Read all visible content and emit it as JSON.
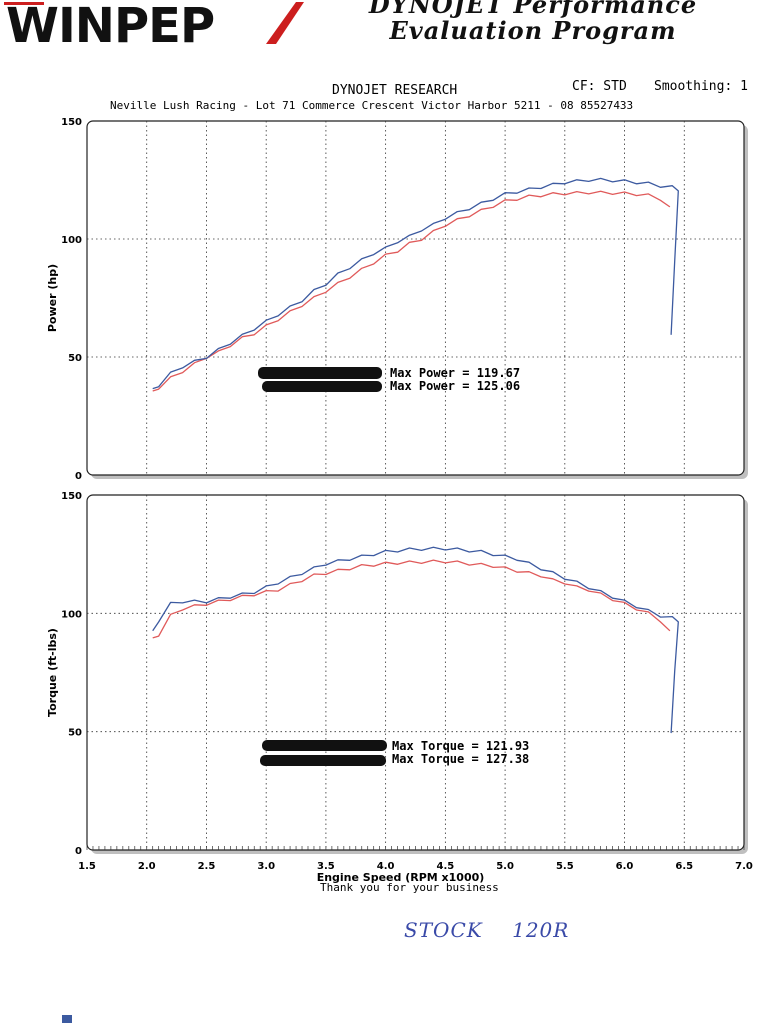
{
  "logo": {
    "name": "WINPEP",
    "title_line1": "DYNOJET Performance",
    "title_line2": "Evaluation Program"
  },
  "header": {
    "company": "DYNOJET RESEARCH",
    "cf": "CF: STD",
    "smoothing": "Smoothing: 1",
    "address": "Neville Lush Racing - Lot 71 Commerce Crescent Victor Harbor  5211 - 08 85527433"
  },
  "footer": {
    "thanks": "Thank you for your business",
    "handwritten": "STOCK    120R"
  },
  "colors": {
    "run_red": "#e05a5a",
    "run_blue": "#3c5aa0",
    "grid": "#333333"
  },
  "chart_data": [
    {
      "type": "line",
      "ylabel": "Power (hp)",
      "xlabel": "",
      "xlim": [
        1.5,
        7.0
      ],
      "ylim": [
        0,
        150
      ],
      "xticks": [
        "1.5",
        "2.0",
        "2.5",
        "3.0",
        "3.5",
        "4.0",
        "4.5",
        "5.0",
        "5.5",
        "6.0",
        "6.5",
        "7.0"
      ],
      "yticks": [
        "0",
        "50",
        "100",
        "150"
      ],
      "grid": true,
      "annotations": [
        "Max Power = 119.67",
        "Max Power = 125.06"
      ],
      "series": [
        {
          "color": "#e05a5a",
          "x": [
            2.05,
            2.1,
            2.2,
            2.3,
            2.4,
            2.5,
            2.6,
            2.7,
            2.8,
            2.9,
            3.0,
            3.1,
            3.2,
            3.3,
            3.4,
            3.5,
            3.6,
            3.7,
            3.8,
            3.9,
            4.0,
            4.1,
            4.2,
            4.3,
            4.4,
            4.5,
            4.6,
            4.7,
            4.8,
            4.9,
            5.0,
            5.1,
            5.2,
            5.3,
            5.4,
            5.5,
            5.6,
            5.7,
            5.8,
            5.9,
            6.0,
            6.1,
            6.2,
            6.3,
            6.38
          ],
          "y": [
            35,
            37,
            41,
            44,
            47,
            50,
            52,
            55,
            58,
            60,
            63,
            66,
            69,
            72,
            75,
            78,
            81,
            84,
            87,
            90,
            93,
            95,
            98,
            100,
            103,
            106,
            108,
            110,
            112,
            114,
            116,
            117,
            118,
            118.5,
            119,
            119.3,
            119.5,
            119.7,
            119.6,
            119.5,
            119.3,
            119,
            118.5,
            117,
            113
          ]
        },
        {
          "color": "#3c5aa0",
          "x": [
            2.05,
            2.1,
            2.2,
            2.3,
            2.4,
            2.5,
            2.6,
            2.7,
            2.8,
            2.9,
            3.0,
            3.1,
            3.2,
            3.3,
            3.4,
            3.5,
            3.6,
            3.7,
            3.8,
            3.9,
            4.0,
            4.1,
            4.2,
            4.3,
            4.4,
            4.5,
            4.6,
            4.7,
            4.8,
            4.9,
            5.0,
            5.1,
            5.2,
            5.3,
            5.4,
            5.5,
            5.6,
            5.7,
            5.8,
            5.9,
            6.0,
            6.1,
            6.2,
            6.3,
            6.4,
            6.45,
            6.42,
            6.39
          ],
          "y": [
            36,
            38,
            43,
            46,
            48,
            50,
            53,
            56,
            59,
            62,
            65,
            68,
            71,
            74,
            78,
            81,
            85,
            88,
            91,
            94,
            96,
            99,
            101,
            104,
            106,
            109,
            111,
            113,
            115,
            117,
            119,
            120,
            121,
            122,
            123,
            124,
            124.5,
            125,
            125.06,
            124.8,
            124.5,
            124,
            123.5,
            122.5,
            122,
            121,
            90,
            60
          ]
        }
      ]
    },
    {
      "type": "line",
      "ylabel": "Torque (ft-lbs)",
      "xlabel": "Engine Speed (RPM x1000)",
      "xlim": [
        1.5,
        7.0
      ],
      "ylim": [
        0,
        150
      ],
      "xticks": [
        "1.5",
        "2.0",
        "2.5",
        "3.0",
        "3.5",
        "4.0",
        "4.5",
        "5.0",
        "5.5",
        "6.0",
        "6.5",
        "7.0"
      ],
      "yticks": [
        "0",
        "50",
        "100",
        "150"
      ],
      "grid": true,
      "annotations": [
        "Max Torque = 121.93",
        "Max Torque = 127.38"
      ],
      "series": [
        {
          "color": "#e05a5a",
          "x": [
            2.05,
            2.1,
            2.2,
            2.3,
            2.4,
            2.5,
            2.6,
            2.7,
            2.8,
            2.9,
            3.0,
            3.1,
            3.2,
            3.3,
            3.4,
            3.5,
            3.6,
            3.7,
            3.8,
            3.9,
            4.0,
            4.1,
            4.2,
            4.3,
            4.4,
            4.5,
            4.6,
            4.7,
            4.8,
            4.9,
            5.0,
            5.1,
            5.2,
            5.3,
            5.4,
            5.5,
            5.6,
            5.7,
            5.8,
            5.9,
            6.0,
            6.1,
            6.2,
            6.3,
            6.38
          ],
          "y": [
            89,
            91,
            99,
            102,
            103,
            104,
            105,
            106,
            107,
            108,
            109,
            110,
            112,
            114,
            116,
            117,
            118,
            119,
            120,
            120.5,
            121,
            121.3,
            121.5,
            121.7,
            121.9,
            121.93,
            121.5,
            121,
            120.5,
            120,
            119,
            118,
            117,
            116,
            114,
            113,
            111,
            110,
            108,
            106,
            104,
            102,
            100,
            97,
            92
          ]
        },
        {
          "color": "#3c5aa0",
          "x": [
            2.05,
            2.1,
            2.2,
            2.3,
            2.4,
            2.5,
            2.6,
            2.7,
            2.8,
            2.9,
            3.0,
            3.1,
            3.2,
            3.3,
            3.4,
            3.5,
            3.6,
            3.7,
            3.8,
            3.9,
            4.0,
            4.1,
            4.2,
            4.3,
            4.4,
            4.5,
            4.6,
            4.7,
            4.8,
            4.9,
            5.0,
            5.1,
            5.2,
            5.3,
            5.4,
            5.5,
            5.6,
            5.7,
            5.8,
            5.9,
            6.0,
            6.1,
            6.2,
            6.3,
            6.4,
            6.45,
            6.42,
            6.39
          ],
          "y": [
            92,
            97,
            104,
            105,
            105,
            105,
            106,
            107,
            108,
            109,
            111,
            113,
            115,
            117,
            119,
            121,
            122,
            123,
            124,
            125,
            126,
            126.5,
            127,
            127.2,
            127.3,
            127.38,
            127,
            126.5,
            126,
            125,
            124,
            123,
            121,
            119,
            117,
            115,
            113,
            111,
            109,
            107,
            105,
            103,
            101,
            99,
            98,
            97,
            75,
            50
          ]
        }
      ]
    }
  ]
}
